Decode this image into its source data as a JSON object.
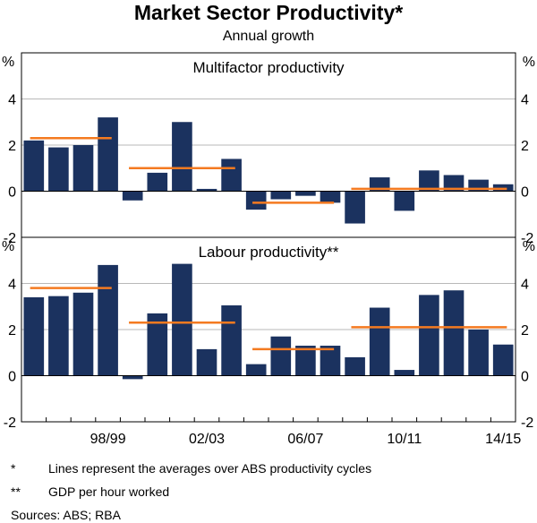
{
  "chart_data": {
    "type": "bar",
    "title": "Market Sector Productivity*",
    "subtitle": "Annual growth",
    "y_unit": "%",
    "x_tick_labels": [
      "98/99",
      "02/03",
      "06/07",
      "10/11",
      "14/15"
    ],
    "x_tick_years": [
      "1998-99",
      "2002-03",
      "2006-07",
      "2010-11",
      "2014-15"
    ],
    "categories": [
      "1995-96",
      "1996-97",
      "1997-98",
      "1998-99",
      "1999-00",
      "2000-01",
      "2001-02",
      "2002-03",
      "2003-04",
      "2004-05",
      "2005-06",
      "2006-07",
      "2007-08",
      "2008-09",
      "2009-10",
      "2010-11",
      "2011-12",
      "2012-13",
      "2013-14",
      "2014-15"
    ],
    "colors": {
      "bar": "#1b325f",
      "average": "#f47a20",
      "grid": "#b8b8b8",
      "frame": "#000000"
    },
    "panels": [
      {
        "title": "Multifactor productivity",
        "ylim": [
          -2,
          6
        ],
        "yticks": [
          "-2",
          "0",
          "2",
          "4"
        ],
        "values": [
          2.2,
          1.9,
          2.0,
          3.2,
          -0.4,
          0.8,
          3.0,
          0.1,
          1.4,
          -0.8,
          -0.35,
          -0.2,
          -0.5,
          -1.4,
          0.6,
          -0.85,
          0.9,
          0.7,
          0.5,
          0.3
        ],
        "averages": [
          {
            "start": 0,
            "end": 3,
            "value": 2.3
          },
          {
            "start": 4,
            "end": 8,
            "value": 1.0
          },
          {
            "start": 9,
            "end": 12,
            "value": -0.5
          },
          {
            "start": 13,
            "end": 19,
            "value": 0.1
          }
        ]
      },
      {
        "title": "Labour productivity**",
        "ylim": [
          -2,
          6
        ],
        "yticks": [
          "-2",
          "0",
          "2",
          "4"
        ],
        "values": [
          3.4,
          3.45,
          3.6,
          4.8,
          -0.15,
          2.7,
          4.85,
          1.15,
          3.05,
          0.5,
          1.7,
          1.3,
          1.3,
          0.8,
          2.95,
          0.25,
          3.5,
          3.7,
          2.0,
          1.35
        ],
        "averages": [
          {
            "start": 0,
            "end": 3,
            "value": 3.8
          },
          {
            "start": 4,
            "end": 8,
            "value": 2.3
          },
          {
            "start": 9,
            "end": 12,
            "value": 1.15
          },
          {
            "start": 13,
            "end": 19,
            "value": 2.1
          }
        ]
      }
    ]
  },
  "notes": [
    {
      "mark": "*",
      "text": "Lines represent the averages over ABS productivity cycles"
    },
    {
      "mark": "**",
      "text": "GDP per hour worked"
    }
  ],
  "sources": "Sources:   ABS; RBA"
}
